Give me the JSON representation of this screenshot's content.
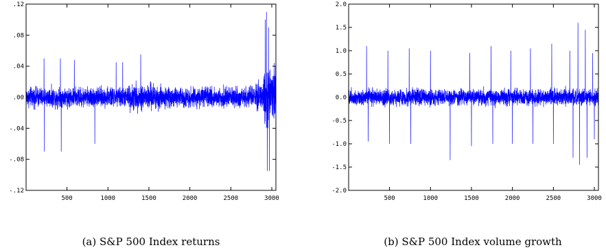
{
  "chart_data": [
    {
      "type": "line",
      "caption": "(a) S&P 500 Index returns",
      "title": "",
      "xlabel": "",
      "ylabel": "",
      "xlim": [
        1,
        3050
      ],
      "ylim": [
        -0.12,
        0.12
      ],
      "xticks": [
        500,
        1000,
        1500,
        2000,
        2500,
        3000
      ],
      "xtick_labels": [
        "500",
        "1000",
        "1500",
        "2000",
        "2500",
        "3000"
      ],
      "yticks": [
        0.12,
        0.08,
        0.04,
        0.0,
        -0.04,
        -0.08,
        -0.12
      ],
      "ytick_labels": [
        ".12",
        ".08",
        ".04",
        ".00",
        "-.04",
        "-.08",
        "-.12"
      ],
      "grid": false,
      "color": "#0000ff",
      "n_points": 3050,
      "baseline_amplitude": 0.018,
      "spikes": [
        {
          "x": 220,
          "y": 0.05
        },
        {
          "x": 225,
          "y": -0.07
        },
        {
          "x": 420,
          "y": 0.05
        },
        {
          "x": 430,
          "y": -0.07
        },
        {
          "x": 590,
          "y": 0.048
        },
        {
          "x": 840,
          "y": -0.06
        },
        {
          "x": 1100,
          "y": 0.045
        },
        {
          "x": 1180,
          "y": 0.045
        },
        {
          "x": 1400,
          "y": 0.055
        },
        {
          "x": 2920,
          "y": 0.1
        },
        {
          "x": 2935,
          "y": 0.11
        },
        {
          "x": 2945,
          "y": -0.095
        },
        {
          "x": 2960,
          "y": 0.09
        },
        {
          "x": 2970,
          "y": -0.095
        }
      ]
    },
    {
      "type": "line",
      "caption": "(b) S&P 500 Index volume growth",
      "title": "",
      "xlabel": "",
      "ylabel": "",
      "xlim": [
        1,
        3050
      ],
      "ylim": [
        -2.0,
        2.0
      ],
      "xticks": [
        500,
        1000,
        1500,
        2000,
        2500,
        3000
      ],
      "xtick_labels": [
        "500",
        "1000",
        "1500",
        "2000",
        "2500",
        "3000"
      ],
      "yticks": [
        2.0,
        1.5,
        1.0,
        0.5,
        0.0,
        -0.5,
        -1.0,
        -1.5,
        -2.0
      ],
      "ytick_labels": [
        "2.0",
        "1.5",
        "1.0",
        "0.5",
        "0.0",
        "-0.5",
        "-1.0",
        "-1.5",
        "-2.0"
      ],
      "grid": false,
      "color": "#0000ff",
      "n_points": 3050,
      "baseline_amplitude": 0.25,
      "spikes": [
        {
          "x": 220,
          "y": 1.1
        },
        {
          "x": 240,
          "y": -0.95
        },
        {
          "x": 480,
          "y": 1.0
        },
        {
          "x": 500,
          "y": -1.0
        },
        {
          "x": 740,
          "y": 1.05
        },
        {
          "x": 760,
          "y": -1.0
        },
        {
          "x": 1000,
          "y": 1.0
        },
        {
          "x": 1240,
          "y": -1.35
        },
        {
          "x": 1480,
          "y": 0.95
        },
        {
          "x": 1500,
          "y": -1.05
        },
        {
          "x": 1740,
          "y": 1.1
        },
        {
          "x": 1760,
          "y": -1.0
        },
        {
          "x": 1980,
          "y": 1.0
        },
        {
          "x": 2000,
          "y": -1.0
        },
        {
          "x": 2220,
          "y": 1.05
        },
        {
          "x": 2250,
          "y": -1.0
        },
        {
          "x": 2480,
          "y": 1.15
        },
        {
          "x": 2500,
          "y": -1.0
        },
        {
          "x": 2700,
          "y": 1.0
        },
        {
          "x": 2740,
          "y": -1.3
        },
        {
          "x": 2800,
          "y": 1.6
        },
        {
          "x": 2820,
          "y": -1.45
        },
        {
          "x": 2890,
          "y": 1.45
        },
        {
          "x": 2910,
          "y": -1.3
        },
        {
          "x": 2980,
          "y": 0.95
        },
        {
          "x": 3000,
          "y": -0.9
        }
      ]
    }
  ]
}
